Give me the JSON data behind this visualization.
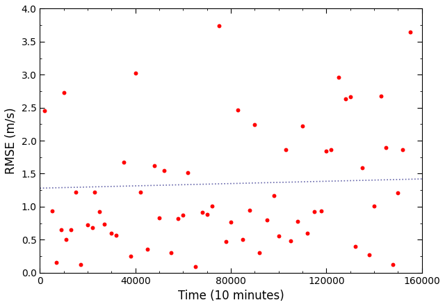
{
  "x_data": [
    2000,
    5000,
    7000,
    9000,
    10000,
    11000,
    13000,
    15000,
    17000,
    20000,
    22000,
    23000,
    25000,
    27000,
    30000,
    32000,
    35000,
    38000,
    40000,
    42000,
    45000,
    48000,
    50000,
    52000,
    55000,
    58000,
    60000,
    62000,
    65000,
    68000,
    70000,
    72000,
    75000,
    78000,
    80000,
    83000,
    85000,
    88000,
    90000,
    92000,
    95000,
    98000,
    100000,
    103000,
    105000,
    108000,
    110000,
    112000,
    115000,
    118000,
    120000,
    122000,
    125000,
    128000,
    130000,
    132000,
    135000,
    138000,
    140000,
    143000,
    145000,
    148000,
    150000,
    152000,
    155000
  ],
  "y_data": [
    2.45,
    0.93,
    0.15,
    0.65,
    2.73,
    0.5,
    0.65,
    1.22,
    0.12,
    0.72,
    0.68,
    1.22,
    0.92,
    0.73,
    0.6,
    0.57,
    1.67,
    0.25,
    3.02,
    1.22,
    0.35,
    1.62,
    0.83,
    1.55,
    0.3,
    0.82,
    0.87,
    1.52,
    0.09,
    0.91,
    0.88,
    1.01,
    3.74,
    0.47,
    0.77,
    2.46,
    0.5,
    0.95,
    2.24,
    0.3,
    0.8,
    1.17,
    0.55,
    1.86,
    0.48,
    0.78,
    2.22,
    0.6,
    0.92,
    0.93,
    1.84,
    1.86,
    2.96,
    2.63,
    2.67,
    0.4,
    1.59,
    0.27,
    1.01,
    2.68,
    1.9,
    0.12,
    1.21,
    1.86,
    3.65
  ],
  "trend_x": [
    0,
    160000
  ],
  "trend_y": [
    1.28,
    1.42
  ],
  "dot_color": "#ff0000",
  "trend_color": "#6666aa",
  "dot_size": 18,
  "xlabel": "Time (10 minutes)",
  "ylabel": "RMSE (m/s)",
  "xlim": [
    0,
    160000
  ],
  "ylim": [
    0.0,
    4.0
  ],
  "xticks": [
    0,
    40000,
    80000,
    120000,
    160000
  ],
  "yticks": [
    0.0,
    0.5,
    1.0,
    1.5,
    2.0,
    2.5,
    3.0,
    3.5,
    4.0
  ],
  "background_color": "#ffffff",
  "fontsize_label": 12,
  "fontsize_tick": 10
}
